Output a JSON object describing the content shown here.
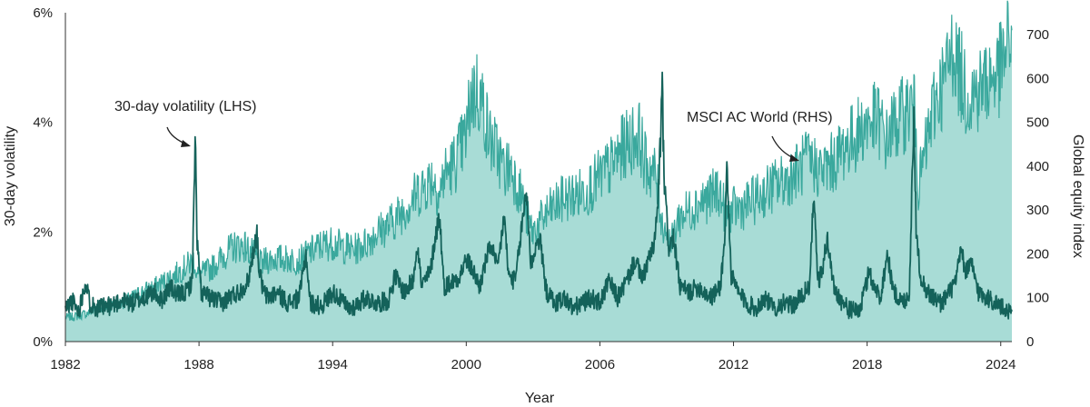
{
  "chart_data": {
    "type": "area",
    "title": "",
    "xlabel": "Year",
    "ylabel_left": "30-day volatility",
    "ylabel_right": "Global equity index",
    "xlim": [
      1982,
      2024.5
    ],
    "ylim_left": [
      0,
      6
    ],
    "ylim_right": [
      0,
      750
    ],
    "x_ticks": [
      "1982",
      "1988",
      "1994",
      "2000",
      "2006",
      "2012",
      "2018",
      "2024"
    ],
    "x_tick_values": [
      1982,
      1988,
      1994,
      2000,
      2006,
      2012,
      2018,
      2024
    ],
    "y_left_ticks": [
      "0%",
      "2%",
      "4%",
      "6%"
    ],
    "y_left_tick_values": [
      0,
      2,
      4,
      6
    ],
    "y_right_ticks": [
      "0",
      "100",
      "200",
      "300",
      "400",
      "500",
      "600",
      "700"
    ],
    "y_right_tick_values": [
      0,
      100,
      200,
      300,
      400,
      500,
      600,
      700
    ],
    "grid": false,
    "colors": {
      "area_fill": "#a8dcd6",
      "area_line": "#3aa89d",
      "volatility_line": "#14625a",
      "axis": "#333333"
    },
    "annotations": [
      {
        "text": "30-day volatility (LHS)",
        "x": 1987.8,
        "y_left": 3.45
      },
      {
        "text": "MSCI AC World (RHS)",
        "x": 2015.2,
        "y_left": 3.3
      }
    ],
    "series": [
      {
        "name": "MSCI AC World (RHS)",
        "axis": "right",
        "kind": "area",
        "x": [
          1982.0,
          1982.5,
          1983.0,
          1983.5,
          1984.0,
          1984.5,
          1985.0,
          1985.5,
          1986.0,
          1986.5,
          1987.0,
          1987.5,
          1987.8,
          1987.9,
          1988.5,
          1989.0,
          1989.5,
          1990.0,
          1990.5,
          1990.8,
          1991.0,
          1991.5,
          1992.0,
          1992.5,
          1993.0,
          1993.5,
          1994.0,
          1994.5,
          1995.0,
          1995.5,
          1996.0,
          1996.5,
          1997.0,
          1997.5,
          1998.0,
          1998.5,
          1998.8,
          1999.0,
          1999.5,
          2000.0,
          2000.2,
          2000.5,
          2000.8,
          2001.0,
          2001.5,
          2001.7,
          2002.0,
          2002.5,
          2002.8,
          2003.0,
          2003.5,
          2004.0,
          2004.5,
          2005.0,
          2005.5,
          2006.0,
          2006.5,
          2007.0,
          2007.5,
          2007.8,
          2008.0,
          2008.5,
          2008.8,
          2009.0,
          2009.2,
          2009.5,
          2010.0,
          2010.5,
          2011.0,
          2011.3,
          2011.7,
          2012.0,
          2012.5,
          2013.0,
          2013.5,
          2014.0,
          2014.5,
          2015.0,
          2015.3,
          2015.7,
          2016.0,
          2016.5,
          2017.0,
          2017.5,
          2018.0,
          2018.5,
          2018.9,
          2019.0,
          2019.5,
          2020.0,
          2020.2,
          2020.3,
          2020.6,
          2021.0,
          2021.5,
          2021.9,
          2022.0,
          2022.5,
          2022.8,
          2023.0,
          2023.5,
          2024.0,
          2024.3,
          2024.5
        ],
        "values": [
          55,
          58,
          65,
          78,
          82,
          88,
          100,
          115,
          125,
          140,
          155,
          175,
          185,
          150,
          165,
          190,
          215,
          220,
          195,
          175,
          185,
          190,
          188,
          185,
          205,
          220,
          225,
          215,
          210,
          225,
          250,
          265,
          290,
          320,
          350,
          375,
          335,
          380,
          410,
          470,
          560,
          575,
          530,
          470,
          420,
          390,
          400,
          330,
          270,
          250,
          285,
          310,
          330,
          335,
          350,
          375,
          400,
          440,
          465,
          470,
          410,
          380,
          270,
          255,
          220,
          280,
          300,
          320,
          330,
          350,
          285,
          300,
          310,
          325,
          345,
          360,
          375,
          395,
          415,
          400,
          390,
          410,
          445,
          470,
          500,
          505,
          455,
          480,
          510,
          540,
          505,
          350,
          430,
          540,
          600,
          680,
          640,
          560,
          570,
          575,
          600,
          620,
          670,
          710
        ]
      },
      {
        "name": "30-day volatility (LHS)",
        "axis": "left",
        "kind": "line",
        "x": [
          1982.0,
          1982.3,
          1982.6,
          1982.9,
          1983.1,
          1983.5,
          1984.0,
          1984.5,
          1985.0,
          1985.5,
          1986.0,
          1986.3,
          1986.7,
          1987.0,
          1987.4,
          1987.7,
          1987.8,
          1987.85,
          1987.9,
          1988.1,
          1988.5,
          1989.0,
          1989.5,
          1989.8,
          1990.2,
          1990.6,
          1990.7,
          1990.9,
          1991.1,
          1991.5,
          1992.0,
          1992.5,
          1992.8,
          1993.0,
          1993.5,
          1994.0,
          1994.3,
          1994.7,
          1995.0,
          1995.5,
          1996.0,
          1996.5,
          1996.8,
          1997.2,
          1997.6,
          1997.8,
          1998.0,
          1998.4,
          1998.6,
          1998.8,
          1999.0,
          1999.4,
          1999.7,
          2000.0,
          2000.3,
          2000.6,
          2000.9,
          2001.1,
          2001.4,
          2001.7,
          2001.9,
          2002.2,
          2002.5,
          2002.7,
          2002.9,
          2003.1,
          2003.3,
          2003.6,
          2004.0,
          2004.4,
          2004.8,
          2005.2,
          2005.6,
          2006.0,
          2006.4,
          2006.8,
          2007.2,
          2007.6,
          2007.9,
          2008.1,
          2008.4,
          2008.6,
          2008.8,
          2008.9,
          2009.1,
          2009.3,
          2009.6,
          2010.0,
          2010.4,
          2010.7,
          2011.0,
          2011.4,
          2011.6,
          2011.7,
          2011.9,
          2012.2,
          2012.6,
          2013.0,
          2013.4,
          2013.8,
          2014.2,
          2014.6,
          2015.0,
          2015.4,
          2015.6,
          2015.8,
          2016.0,
          2016.2,
          2016.5,
          2016.9,
          2017.3,
          2017.7,
          2018.1,
          2018.3,
          2018.6,
          2018.9,
          2019.2,
          2019.6,
          2019.9,
          2020.1,
          2020.2,
          2020.4,
          2020.7,
          2021.0,
          2021.3,
          2021.7,
          2022.0,
          2022.2,
          2022.4,
          2022.7,
          2023.0,
          2023.4,
          2023.8,
          2024.1,
          2024.5
        ],
        "values": [
          0.6,
          0.75,
          0.55,
          1.1,
          0.7,
          0.6,
          0.65,
          0.75,
          0.7,
          0.8,
          0.9,
          0.75,
          1.0,
          0.85,
          0.9,
          1.1,
          3.3,
          3.6,
          1.9,
          0.9,
          0.8,
          0.7,
          0.85,
          0.9,
          1.1,
          2.0,
          1.3,
          0.9,
          0.8,
          0.9,
          0.7,
          0.8,
          1.6,
          0.7,
          0.65,
          0.9,
          0.8,
          0.6,
          0.65,
          0.8,
          0.7,
          0.75,
          1.2,
          0.9,
          1.1,
          1.8,
          1.0,
          1.3,
          1.9,
          2.3,
          1.0,
          1.1,
          1.2,
          1.5,
          1.3,
          1.0,
          1.5,
          1.8,
          1.3,
          2.3,
          1.2,
          1.1,
          2.1,
          2.8,
          1.4,
          1.7,
          1.9,
          0.9,
          0.7,
          0.8,
          0.6,
          0.7,
          0.8,
          0.7,
          1.1,
          0.8,
          1.1,
          1.5,
          1.1,
          1.4,
          1.7,
          2.4,
          4.5,
          2.8,
          1.7,
          1.9,
          1.0,
          0.9,
          1.0,
          0.9,
          0.8,
          1.0,
          1.8,
          3.2,
          1.2,
          0.9,
          0.7,
          0.6,
          0.8,
          0.6,
          0.7,
          0.65,
          0.8,
          1.0,
          2.6,
          1.1,
          1.3,
          1.9,
          1.0,
          0.7,
          0.55,
          0.6,
          1.3,
          1.0,
          0.8,
          1.6,
          0.9,
          0.7,
          0.9,
          4.3,
          2.0,
          1.2,
          0.9,
          0.8,
          0.7,
          0.9,
          1.1,
          1.7,
          1.3,
          1.4,
          0.9,
          0.8,
          0.7,
          0.6,
          0.55
        ]
      }
    ]
  }
}
